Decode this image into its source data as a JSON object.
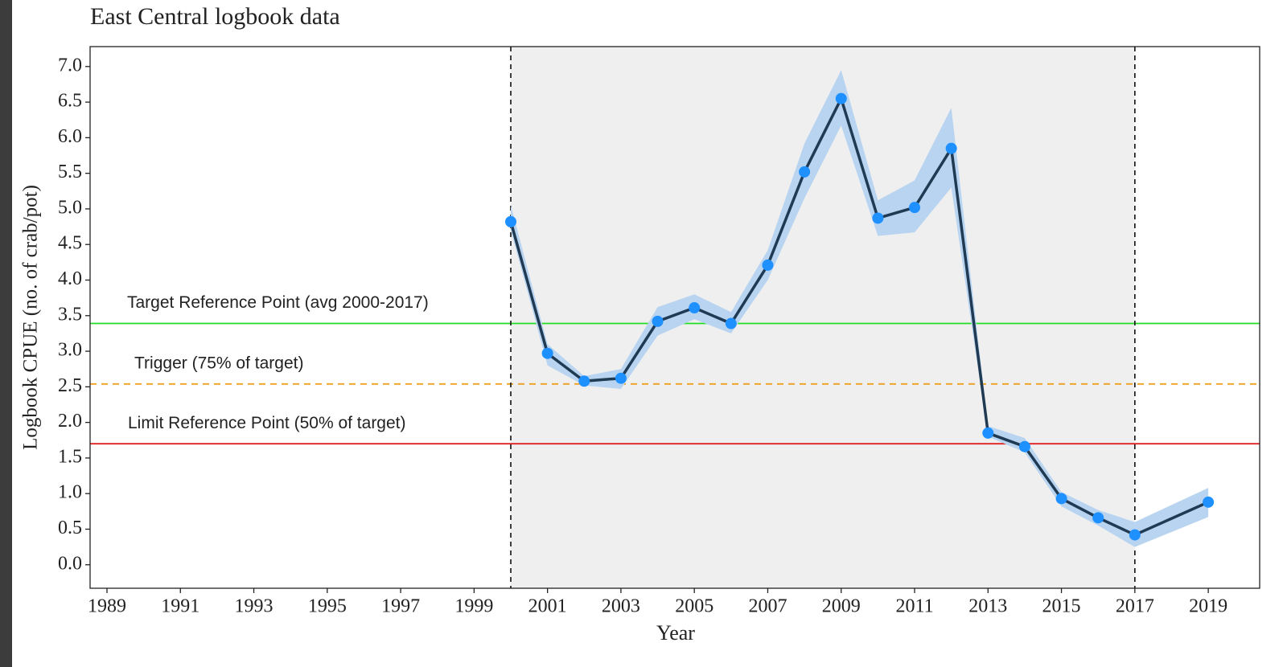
{
  "chart_data": {
    "type": "line",
    "title": "East Central logbook data",
    "x_label": "Year",
    "y_label": "Logbook CPUE (no. of crab/pot)",
    "x": [
      2000,
      2001,
      2002,
      2003,
      2004,
      2005,
      2006,
      2007,
      2008,
      2009,
      2010,
      2011,
      2012,
      2013,
      2014,
      2015,
      2016,
      2017,
      2019
    ],
    "series": [
      {
        "color": "#1e90ff",
        "line_color": "#1f3a52",
        "band_color": "#b8d4f0",
        "values": [
          4.82,
          2.97,
          2.58,
          2.62,
          3.42,
          3.61,
          3.39,
          4.21,
          5.52,
          6.55,
          4.87,
          5.02,
          5.85,
          1.85,
          1.66,
          0.93,
          0.66,
          0.42,
          0.88
        ],
        "lower": [
          4.7,
          2.8,
          2.52,
          2.47,
          3.22,
          3.45,
          3.25,
          4.0,
          5.15,
          6.17,
          4.62,
          4.67,
          5.3,
          1.8,
          1.58,
          0.82,
          0.55,
          0.25,
          0.67
        ],
        "upper": [
          5.05,
          3.1,
          2.65,
          2.75,
          3.62,
          3.8,
          3.55,
          4.42,
          5.92,
          6.95,
          5.12,
          5.4,
          6.42,
          1.95,
          1.78,
          1.02,
          0.77,
          0.6,
          1.08
        ]
      }
    ],
    "reference_lines": [
      {
        "label": "Target Reference Point (avg 2000-2017)",
        "value": 3.39,
        "color": "#22dd22",
        "dashed": false
      },
      {
        "label": "Trigger (75% of target)",
        "value": 2.54,
        "color": "#f0a020",
        "dashed": true
      },
      {
        "label": "Limit Reference Point (50% of target)",
        "value": 1.7,
        "color": "#e02020",
        "dashed": false
      }
    ],
    "shaded_range": [
      2000,
      2017
    ],
    "shade_color": "#efefef",
    "xlim": [
      1988.54,
      2020.4
    ],
    "ylim": [
      -0.33,
      7.28
    ],
    "xticks": [
      1989,
      1991,
      1993,
      1995,
      1997,
      1999,
      2001,
      2003,
      2005,
      2007,
      2009,
      2011,
      2013,
      2015,
      2017,
      2019
    ],
    "yticks": [
      {
        "value": 0,
        "label": "0.0"
      },
      0.5,
      {
        "value": 1,
        "label": "1.0"
      },
      1.5,
      {
        "value": 2,
        "label": "2.0"
      },
      2.5,
      {
        "value": 3,
        "label": "3.0"
      },
      3.5,
      {
        "value": 4,
        "label": "4.0"
      },
      4.5,
      {
        "value": 5,
        "label": "5.0"
      },
      5.5,
      {
        "value": 6,
        "label": "6.0"
      },
      6.5,
      {
        "value": 7,
        "label": "7.0"
      }
    ],
    "grid": false
  }
}
